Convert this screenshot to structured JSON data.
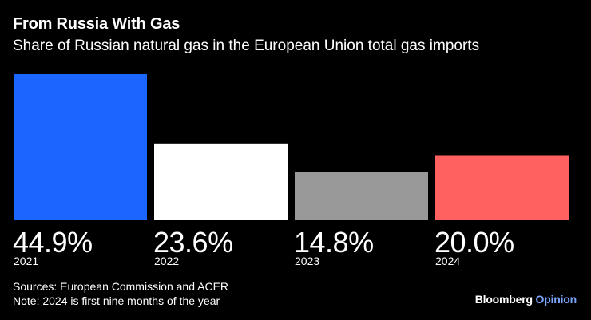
{
  "title": "From Russia With Gas",
  "subtitle": "Share of Russian natural gas in the European Union total gas imports",
  "chart_data": {
    "type": "bar",
    "categories": [
      "2021",
      "2022",
      "2023",
      "2024"
    ],
    "values": [
      44.9,
      23.6,
      14.8,
      20.0
    ],
    "value_labels": [
      "44.9%",
      "23.6%",
      "14.8%",
      "20.0%"
    ],
    "colors": [
      "#1a66ff",
      "#ffffff",
      "#999999",
      "#ff6060"
    ],
    "ylim": [
      0,
      44.9
    ],
    "xlabel": "",
    "ylabel": "",
    "grid": false
  },
  "footer": {
    "sources": "Sources: European Commission and ACER",
    "note": "Note: 2024 is first nine months of the year"
  },
  "brand": {
    "name": "Bloomberg",
    "section": "Opinion"
  }
}
